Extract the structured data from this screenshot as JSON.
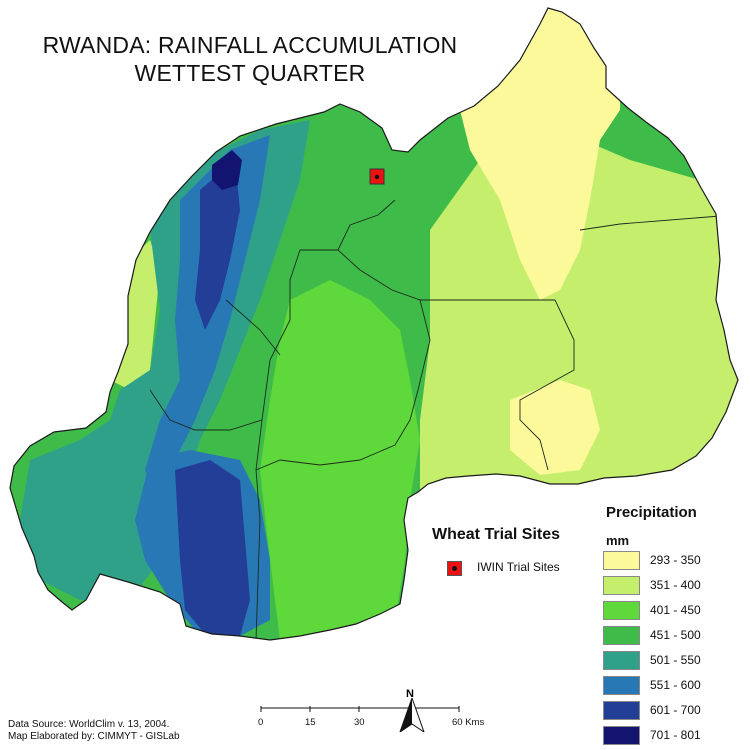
{
  "title": {
    "line1": "RWANDA:  RAINFALL ACCUMULATION",
    "line2": "WETTEST QUARTER"
  },
  "legend_sites": {
    "heading": "Wheat Trial Sites",
    "marker_label": "IWIN Trial Sites",
    "marker_color": "#ee1111"
  },
  "legend_precip": {
    "heading": "Precipitation",
    "unit": "mm",
    "classes": [
      {
        "range": "293 - 350",
        "color": "#fbf99a"
      },
      {
        "range": "351 - 400",
        "color": "#c4ee6c"
      },
      {
        "range": "401 - 450",
        "color": "#5fd83b"
      },
      {
        "range": "451 - 500",
        "color": "#3fbb49"
      },
      {
        "range": "501 - 550",
        "color": "#2fa189"
      },
      {
        "range": "551 - 600",
        "color": "#2878b6"
      },
      {
        "range": "601 - 700",
        "color": "#223e97"
      },
      {
        "range": "701 - 801",
        "color": "#131370"
      }
    ]
  },
  "scale": {
    "ticks": [
      "0",
      "15",
      "30",
      "60 Kms"
    ]
  },
  "north": {
    "letter": "N"
  },
  "credits": {
    "line1": "Data Source: WorldClim v. 13, 2004.",
    "line2": "Map Elaborated by: CIMMYT - GISLab"
  }
}
